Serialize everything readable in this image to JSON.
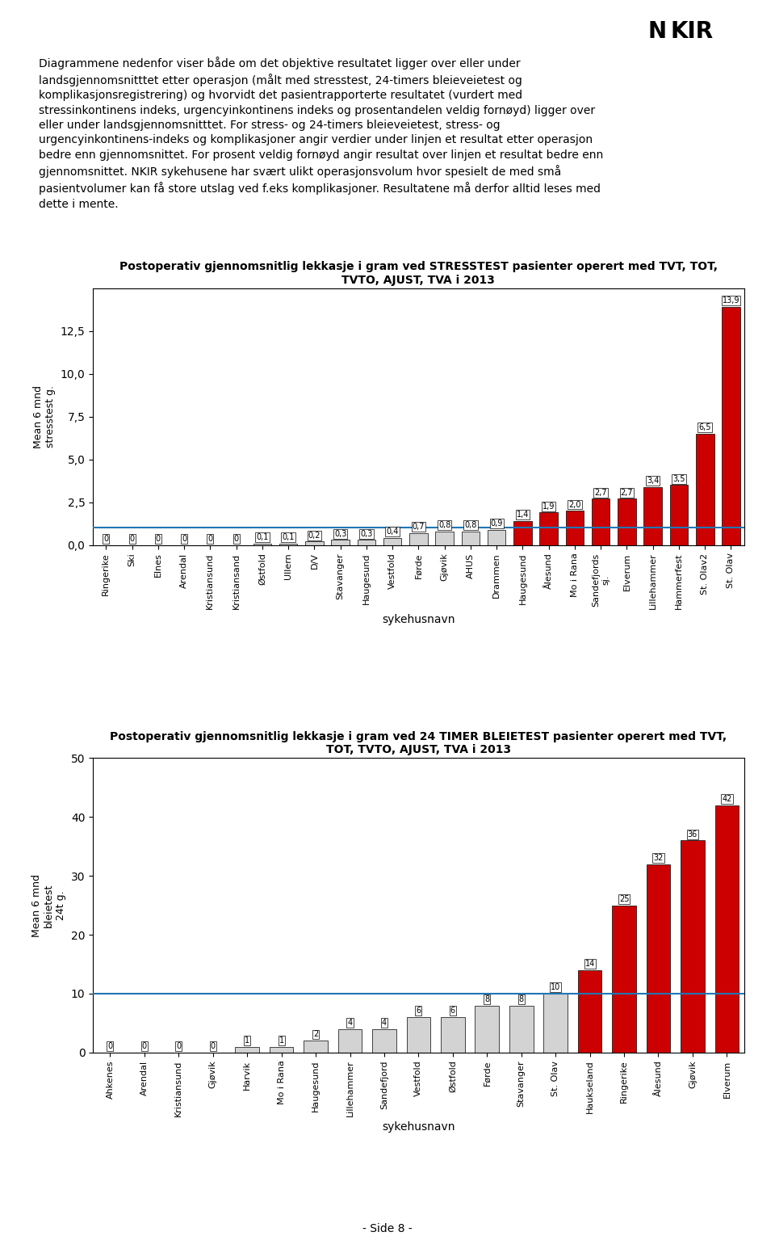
{
  "chart_data": [
    {
      "type": "bar",
      "title": "Postoperativ gjennomsnitlig lekkasje i gram ved STRESSTEST pasienter operert med TVT, TOT,\nTVTO, AJUST, TVA i 2013",
      "subtitle": "Diagrammene nedenfor viser både om det objektive resultatet ligger over eller under\nlandsgjennomsnitttet etter operasjon (målt med stresstest, 24-timers bleieveietest og\nkomplikasjonsregistrering) og hvorvidt det pasientrapporterte resultatet (vurdert med\nstressinkontinens indeks, urgencyinkontinens indeks og prosentandelen veldig fornøyd) ligger over\neller under landsgjennomsnitttet. For stress- og 24-timers bleieveietest, stress- og\nurgencyinkontinens-indeks og komplikasjoner angir verdier under linjen et resultat etter operasjon\nbedre enn gjennomsnittet. For prosent veldig fornøyd angir resultat over linjen et resultat bedre enn\ngjennomsnittet. NKIR sykehusene har svært ulikt operasjonsvolum hvor spesielt de med små\npasientvolumer kan få store utslag ved f.eks komplikasjoner. Resultatene må derfor alltid leses med\ndette i mente.",
      "annotations": [
        "N",
        "KIR"
      ],
      "x_label": "sykehusnavn",
      "y_label": "Mean 6 mnd\nstresstest g.",
      "categories": [
        "Ringerike",
        "Ski",
        "Elnes",
        "Arendal",
        "Kristiansund",
        "Kristiansand",
        "Østfold",
        "Ullern",
        "D/V",
        "Stavanger",
        "Haugesund",
        "Vestfold",
        "Førde",
        "Gjøvik",
        "AHUS",
        "Drammen",
        "Haugesund",
        "Ålesund",
        "Mo i Rana",
        "Sandefjords\nsj.",
        "Elverum",
        "Lillehammer",
        "Hammerfest",
        "St. Olav2",
        "St. Olav"
      ],
      "values": [
        0.0,
        0.0,
        0.0,
        0.0,
        0.0,
        0.0,
        0.1,
        0.1,
        0.2,
        0.3,
        0.3,
        0.4,
        0.7,
        0.8,
        0.8,
        0.9,
        1.4,
        1.9,
        2.0,
        2.7,
        2.7,
        3.4,
        3.5,
        6.5,
        13.9
      ],
      "value_labels": [
        "0",
        "0",
        "0",
        "0",
        "0",
        "0",
        "0,1",
        "0,1",
        "0,2",
        "0,3",
        "0,3",
        "0,4",
        "0,7",
        "0,8",
        "0,8",
        "0,9",
        "1,4",
        "1,9",
        "2,0",
        "2,7",
        "2,7",
        "3,4",
        "3,5",
        "6,5",
        "13,9"
      ],
      "colors": [
        "#d3d3d3",
        "#d3d3d3",
        "#d3d3d3",
        "#d3d3d3",
        "#d3d3d3",
        "#d3d3d3",
        "#d3d3d3",
        "#d3d3d3",
        "#d3d3d3",
        "#d3d3d3",
        "#d3d3d3",
        "#d3d3d3",
        "#d3d3d3",
        "#d3d3d3",
        "#d3d3d3",
        "#d3d3d3",
        "#cc0000",
        "#cc0000",
        "#cc0000",
        "#cc0000",
        "#cc0000",
        "#cc0000",
        "#cc0000",
        "#cc0000",
        "#cc0000"
      ],
      "mean_line": 1.0,
      "ylim": [
        0,
        15
      ],
      "yticks": [
        {
          "value": 0.0,
          "label": "0,0"
        },
        {
          "value": 2.5,
          "label": "2,5"
        },
        {
          "value": 5.0,
          "label": "5,0"
        },
        {
          "value": 7.5,
          "label": "7,5"
        },
        {
          "value": 10.0,
          "label": "10,0"
        },
        {
          "value": 12.5,
          "label": "12,5"
        }
      ],
      "data_labels": true,
      "grid": false
    },
    {
      "type": "bar",
      "title": "Postoperativ gjennomsnitlig lekkasje i gram ved 24 TIMER BLEIETEST pasienter operert med TVT,\nTOT, TVTO, AJUST, TVA i 2013",
      "annotations": [
        "- Side 8 -"
      ],
      "x_label": "sykehusnavn",
      "y_label": "Mean 6 mnd\nbleietest\n24t g.",
      "categories": [
        "Ahkenes",
        "Arendal",
        "Kristiansund",
        "Gjøvik",
        "Harvik",
        "Mo i Rana",
        "Haugesund",
        "Lillehammer",
        "Sandefjord",
        "Vestfold",
        "Østfold",
        "Førde",
        "Stavanger",
        "St. Olav",
        "Haukseland",
        "Ringerike",
        "Ålesund",
        "Gjøvik",
        "Elverum"
      ],
      "values": [
        0,
        0,
        0,
        0,
        1,
        1,
        2,
        4,
        4,
        6,
        6,
        8,
        8,
        10,
        14,
        25,
        32,
        36,
        42
      ],
      "colors": [
        "#d3d3d3",
        "#d3d3d3",
        "#d3d3d3",
        "#d3d3d3",
        "#d3d3d3",
        "#d3d3d3",
        "#d3d3d3",
        "#d3d3d3",
        "#d3d3d3",
        "#d3d3d3",
        "#d3d3d3",
        "#d3d3d3",
        "#d3d3d3",
        "#d3d3d3",
        "#cc0000",
        "#cc0000",
        "#cc0000",
        "#cc0000",
        "#cc0000"
      ],
      "mean_line": 10,
      "ylim": [
        0,
        50
      ],
      "yticks": [
        0,
        10,
        20,
        30,
        40,
        50
      ],
      "data_labels": true,
      "grid": false
    }
  ]
}
